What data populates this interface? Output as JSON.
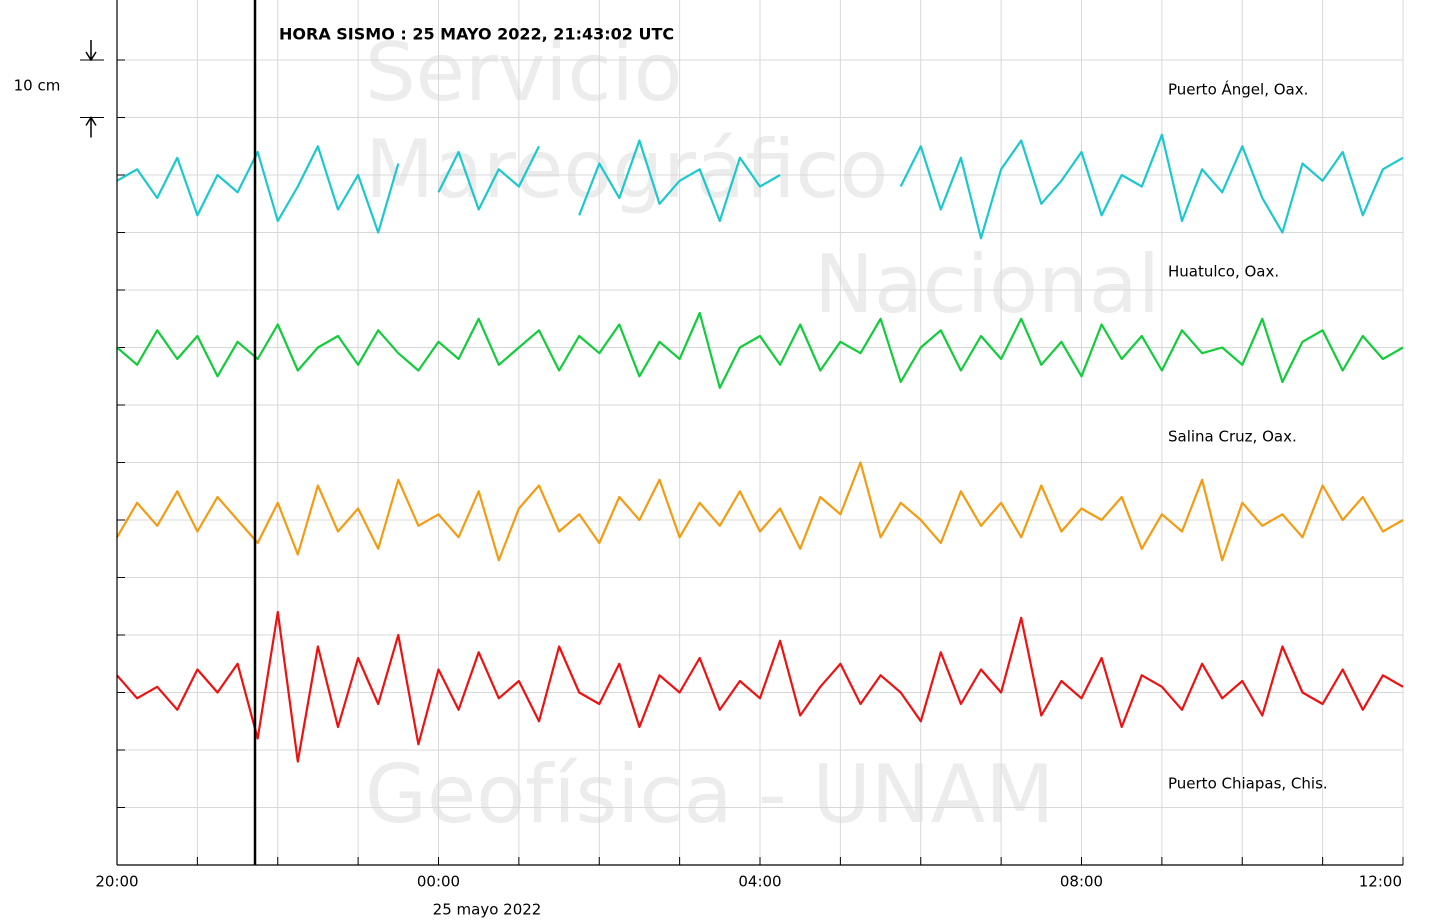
{
  "chart_data": {
    "type": "line",
    "annotation": "HORA SISMO : 25 MAYO 2022, 21:43:02 UTC",
    "event_x": 1.717,
    "date_label": "25 mayo 2022",
    "scale_bar": {
      "value": 10,
      "label": "10 cm"
    },
    "watermark": [
      "Servicio",
      "Mareográfico",
      "Nacional",
      "Geofísica - UNAM"
    ],
    "xlim": [
      0,
      16
    ],
    "xticks": [
      {
        "value": 0,
        "label": "20:00"
      },
      {
        "value": 4,
        "label": "00:00"
      },
      {
        "value": 8,
        "label": "04:00"
      },
      {
        "value": 12,
        "label": "08:00"
      },
      {
        "value": 16,
        "label": "12:00"
      }
    ],
    "xgrid": [
      1,
      2,
      3,
      5,
      6,
      7,
      9,
      10,
      11,
      13,
      14,
      15
    ],
    "ylim": [
      0,
      150
    ],
    "yticks": [
      10,
      20,
      30,
      40,
      50,
      60,
      70,
      80,
      90,
      100,
      110,
      120,
      130,
      140
    ],
    "grid": true,
    "x": [
      0,
      0.25,
      0.5,
      0.75,
      1,
      1.25,
      1.5,
      1.75,
      2,
      2.25,
      2.5,
      2.75,
      3,
      3.25,
      3.5,
      3.75,
      4,
      4.25,
      4.5,
      4.75,
      5,
      5.25,
      5.5,
      5.75,
      6,
      6.25,
      6.5,
      6.75,
      7,
      7.25,
      7.5,
      7.75,
      8,
      8.25,
      8.5,
      8.75,
      9,
      9.25,
      9.5,
      9.75,
      10,
      10.25,
      10.5,
      10.75,
      11,
      11.25,
      11.5,
      11.75,
      12,
      12.25,
      12.5,
      12.75,
      13,
      13.25,
      13.5,
      13.75,
      14,
      14.25,
      14.5,
      14.75,
      15,
      15.25,
      15.5,
      15.75,
      16
    ],
    "series": [
      {
        "name": "Puerto Ángel, Oax.",
        "color": "#1cc8cf",
        "values": [
          119,
          121,
          116,
          123,
          113,
          120,
          117,
          124,
          112,
          118,
          125,
          114,
          120,
          110,
          122,
          null,
          117,
          124,
          114,
          121,
          118,
          125,
          null,
          113,
          122,
          116,
          126,
          115,
          119,
          121,
          112,
          123,
          118,
          120,
          null,
          122,
          null,
          111,
          null,
          118,
          125,
          114,
          123,
          109,
          121,
          126,
          115,
          119,
          124,
          113,
          120,
          118,
          127,
          112,
          121,
          117,
          125,
          116,
          110,
          122,
          119,
          124,
          113,
          121,
          123
        ]
      },
      {
        "name": "Huatulco, Oax.",
        "color": "#12cc3c",
        "values": [
          90,
          87,
          93,
          88,
          92,
          85,
          91,
          88,
          94,
          86,
          90,
          92,
          87,
          93,
          89,
          86,
          91,
          88,
          95,
          87,
          90,
          93,
          86,
          92,
          89,
          94,
          85,
          91,
          88,
          96,
          83,
          90,
          92,
          87,
          94,
          86,
          91,
          89,
          95,
          84,
          90,
          93,
          86,
          92,
          88,
          95,
          87,
          91,
          85,
          94,
          88,
          92,
          86,
          93,
          89,
          90,
          87,
          95,
          84,
          91,
          93,
          86,
          92,
          88,
          90
        ]
      },
      {
        "name": "Salina Cruz, Oax.",
        "color": "#f39c12",
        "values": [
          57,
          63,
          59,
          65,
          58,
          64,
          60,
          56,
          63,
          54,
          66,
          58,
          62,
          55,
          67,
          59,
          61,
          57,
          65,
          53,
          62,
          66,
          58,
          61,
          56,
          64,
          60,
          67,
          57,
          63,
          59,
          65,
          58,
          62,
          55,
          64,
          61,
          70,
          57,
          63,
          60,
          56,
          65,
          59,
          63,
          57,
          66,
          58,
          62,
          60,
          64,
          55,
          61,
          58,
          67,
          53,
          63,
          59,
          61,
          57,
          66,
          60,
          64,
          58,
          60
        ]
      },
      {
        "name": "Puerto Chiapas, Chis.",
        "color": "#ee1111",
        "values": [
          33,
          29,
          31,
          27,
          34,
          30,
          35,
          22,
          44,
          18,
          38,
          24,
          36,
          28,
          40,
          21,
          34,
          27,
          37,
          29,
          32,
          25,
          38,
          30,
          28,
          35,
          24,
          33,
          30,
          36,
          27,
          32,
          29,
          39,
          26,
          31,
          35,
          28,
          33,
          30,
          25,
          37,
          28,
          34,
          30,
          43,
          26,
          32,
          29,
          36,
          24,
          33,
          31,
          27,
          35,
          29,
          32,
          26,
          38,
          30,
          28,
          34,
          27,
          33,
          31
        ]
      }
    ]
  }
}
